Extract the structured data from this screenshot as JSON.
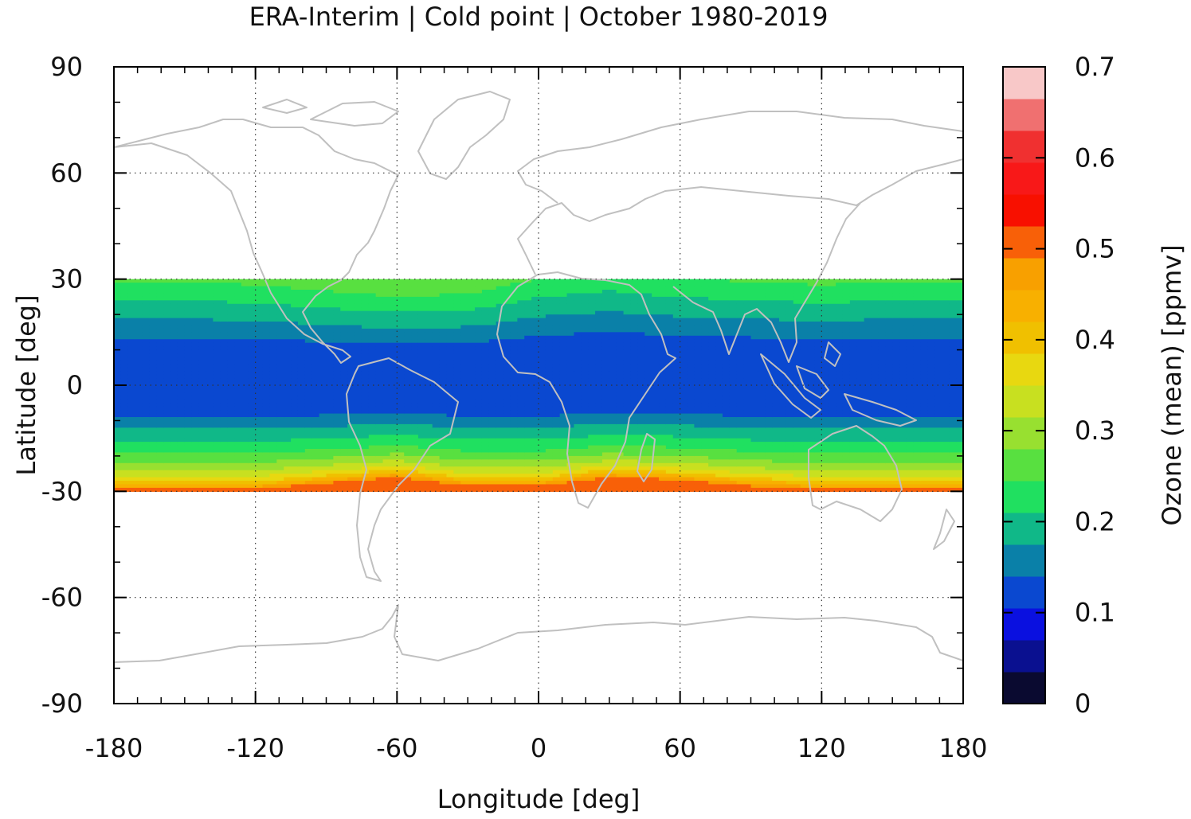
{
  "chart_data": {
    "type": "heatmap",
    "title": "ERA-Interim | Cold point | October 1980-2019",
    "xlabel": "Longitude [deg]",
    "ylabel": "Latitude [deg]",
    "xlim": [
      -180,
      180
    ],
    "ylim": [
      -90,
      90
    ],
    "xticks": [
      -180,
      -120,
      -60,
      0,
      60,
      120,
      180
    ],
    "yticks": [
      90,
      60,
      30,
      0,
      -30,
      -60,
      -90
    ],
    "grid": true,
    "data_lat_range": [
      -30,
      30
    ],
    "colorbar": {
      "label": "Ozone (mean) [ppmv]",
      "range": [
        0,
        0.7
      ],
      "ticks": [
        0,
        0.1,
        0.2,
        0.3,
        0.4,
        0.5,
        0.6,
        0.7
      ],
      "tick_labels": [
        "0",
        "0.1",
        "0.2",
        "0.3",
        "0.4",
        "0.5",
        "0.6",
        "0.7"
      ],
      "colors": [
        "#0a0a30",
        "#0a1090",
        "#0a10e0",
        "#0a48d0",
        "#0a80a8",
        "#10b888",
        "#20e060",
        "#58e040",
        "#98e030",
        "#c8e020",
        "#e8d810",
        "#f0c000",
        "#f8b000",
        "#f8a000",
        "#f86008",
        "#f81000",
        "#f81818",
        "#f03030",
        "#f07070",
        "#f8c8c8"
      ]
    },
    "lon_profile": {
      "lon": [
        -180,
        -150,
        -120,
        -90,
        -60,
        -30,
        0,
        30,
        60,
        90,
        120,
        150,
        180
      ],
      "north_offset_deg": [
        0,
        0,
        -1,
        -3,
        -5,
        -4,
        1,
        3,
        1,
        0,
        -1,
        0,
        0
      ],
      "south_offset_deg": [
        0,
        0,
        0,
        2,
        4,
        1,
        1,
        4,
        3,
        1,
        0,
        0,
        0
      ]
    },
    "lat_profile": {
      "lat": [
        30,
        27,
        24,
        21,
        18,
        15,
        12,
        10,
        0,
        -5,
        -8,
        -10,
        -13,
        -16,
        -19,
        -22,
        -25,
        -27,
        -28.5,
        -30
      ],
      "ozone": [
        0.25,
        0.23,
        0.21,
        0.19,
        0.17,
        0.15,
        0.13,
        0.11,
        0.105,
        0.11,
        0.13,
        0.15,
        0.18,
        0.21,
        0.24,
        0.28,
        0.33,
        0.38,
        0.44,
        0.52
      ]
    }
  }
}
